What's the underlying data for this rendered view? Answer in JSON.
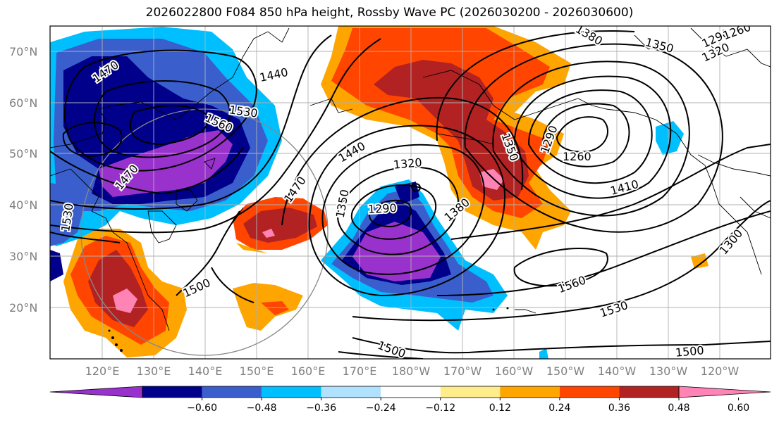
{
  "title": "2026022800 F084 850 hPa height, Rossby Wave PC (2026030200 - 2026030600)",
  "lat_ticks": [
    "70°N",
    "60°N",
    "50°N",
    "40°N",
    "30°N",
    "20°N"
  ],
  "lon_ticks": [
    "120°E",
    "130°E",
    "140°E",
    "150°E",
    "160°E",
    "170°E",
    "180°W",
    "170°W",
    "160°W",
    "150°W",
    "140°W",
    "130°W",
    "120°W"
  ],
  "contour_labels": [
    "1470",
    "1440",
    "1380",
    "1350",
    "1320",
    "1290",
    "1260",
    "1530",
    "1560",
    "1470",
    "1530",
    "1440",
    "1470",
    "1350",
    "1320",
    "1290",
    "1380",
    "1410",
    "1350",
    "1290",
    "1260",
    "1300",
    "1500",
    "1560",
    "1530",
    "1500",
    "1500"
  ],
  "colorbar": {
    "colors": [
      "#9932cc",
      "#00008b",
      "#3a5fcd",
      "#00bfff",
      "#b0e2ff",
      "#ffffff",
      "#ffec8b",
      "#ffa500",
      "#ff4500",
      "#b22222",
      "#ff83b4"
    ],
    "tick_labels": [
      "−0.60",
      "−0.48",
      "−0.36",
      "−0.24",
      "−0.12",
      "0.12",
      "0.24",
      "0.36",
      "0.48",
      "0.60"
    ]
  },
  "shading_colors": {
    "neg_lightest": "#b0e2ff",
    "neg_light": "#00bfff",
    "neg_mid": "#3a5fcd",
    "neg_dark": "#00008b",
    "neg_darkest": "#9932cc",
    "pos_lightest": "#ffec8b",
    "pos_light": "#ffa500",
    "pos_mid": "#ff4500",
    "pos_dark": "#b22222",
    "pos_darkest": "#ff83b4"
  }
}
